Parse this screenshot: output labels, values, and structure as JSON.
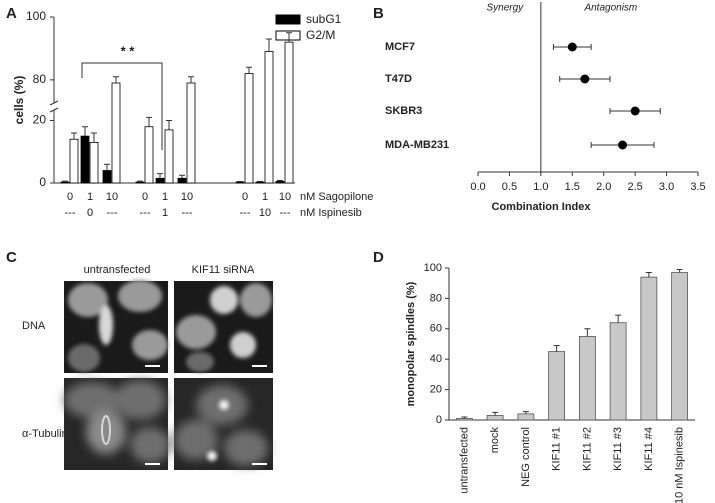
{
  "chart_data": [
    {
      "panel_label": "A",
      "type": "bar",
      "ylabel": "cells (%)",
      "categories": [
        "0",
        "1",
        "10",
        "0",
        "1",
        "10",
        "0",
        "1",
        "10"
      ],
      "categories_2": [
        "---",
        "0",
        "---",
        "---",
        "1",
        "---",
        "---",
        "10",
        "---"
      ],
      "category_titles": [
        "nM Sagopilone",
        "nM Ispinesib"
      ],
      "series": [
        {
          "name": "subG1",
          "color": "#000000",
          "values": [
            0.3,
            15,
            4,
            0.3,
            1.5,
            1.5,
            0.3,
            0.3,
            0.5
          ],
          "errors": [
            0.3,
            3,
            2,
            0.3,
            1.5,
            1,
            0.2,
            0.2,
            0.3
          ]
        },
        {
          "name": "G2/M",
          "color": "#ffffff",
          "values": [
            14,
            13,
            79,
            18,
            17,
            79,
            82,
            89,
            92
          ],
          "errors": [
            2,
            3,
            2,
            3,
            3,
            2,
            2,
            4,
            3
          ]
        }
      ],
      "ylim": [
        0,
        100
      ],
      "yticks": [
        0,
        20,
        80,
        100
      ],
      "axis_break": [
        24,
        72
      ],
      "annotation": "* *"
    },
    {
      "panel_label": "B",
      "type": "forest",
      "xlabel": "Combination Index",
      "categories": [
        "MCF7",
        "T47D",
        "SKBR3",
        "MDA-MB231"
      ],
      "values": [
        1.5,
        1.7,
        2.5,
        2.3
      ],
      "lower": [
        1.2,
        1.3,
        2.1,
        1.8
      ],
      "upper": [
        1.8,
        2.1,
        2.9,
        2.8
      ],
      "xlim": [
        0,
        3.5
      ],
      "xticks": [
        {
          "value": 0,
          "label": "0.0"
        },
        0.5,
        {
          "value": 1,
          "label": "1.0"
        },
        1.5,
        {
          "value": 2,
          "label": "2.0"
        },
        2.5,
        {
          "value": 3,
          "label": "3.0"
        },
        3.5
      ],
      "reference_line": 1,
      "annotations": [
        "Synergy",
        "Antagonism"
      ],
      "color": "#000000"
    },
    {
      "panel_label": "D",
      "type": "bar",
      "ylabel": "monopolar spindles (%)",
      "categories": [
        "untransfected",
        "mock",
        "NEG control",
        "KIF11 #1",
        "KIF11 #2",
        "KIF11 #3",
        "KIF11 #4",
        "10 nM Ispinesib"
      ],
      "values": [
        1,
        3,
        4,
        45,
        55,
        64,
        94,
        97
      ],
      "errors": [
        1,
        2,
        1.5,
        4,
        5,
        5,
        3,
        2
      ],
      "color": "#c8c8c8",
      "ylim": [
        0,
        100
      ],
      "yticks": [
        0,
        20,
        40,
        60,
        80,
        100
      ]
    }
  ],
  "panel_c": {
    "label": "C",
    "columns": [
      "untransfected",
      "KIF11 siRNA"
    ],
    "rows": [
      "DNA",
      "α-Tubulin"
    ]
  }
}
